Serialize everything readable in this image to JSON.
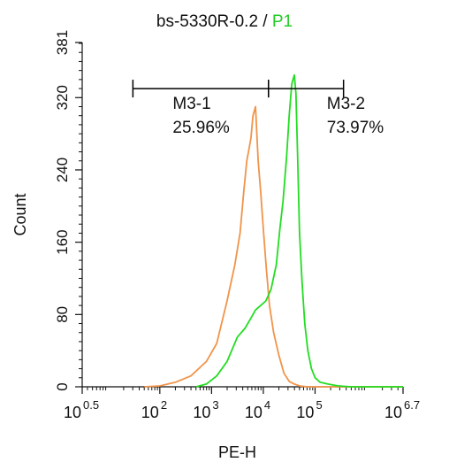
{
  "title": {
    "main": "bs-5330R-0.2",
    "separator": " / ",
    "accent": "P1"
  },
  "colors": {
    "background": "#ffffff",
    "axis": "#111111",
    "control_series": "#f0944a",
    "sample_series": "#22dd22",
    "accent_text": "#22cc22"
  },
  "chart_data": {
    "type": "line",
    "title": "bs-5330R-0.2 / P1",
    "xlabel": "PE-H",
    "ylabel": "Count",
    "x_scale": "log10",
    "xlim": [
      0.5,
      6.7
    ],
    "ylim": [
      0,
      381
    ],
    "grid": false,
    "x_ticks": [
      {
        "exp": 0.5,
        "label": "10",
        "sup": "0.5"
      },
      {
        "exp": 2,
        "label": "10",
        "sup": "2"
      },
      {
        "exp": 3,
        "label": "10",
        "sup": "3"
      },
      {
        "exp": 4,
        "label": "10",
        "sup": "4"
      },
      {
        "exp": 5,
        "label": "10",
        "sup": "5"
      },
      {
        "exp": 6.7,
        "label": "10",
        "sup": "6.7"
      }
    ],
    "y_ticks": [
      0,
      80,
      160,
      240,
      320,
      381
    ],
    "series": [
      {
        "key": "control",
        "x": [
          1.7,
          2.0,
          2.3,
          2.6,
          2.9,
          3.1,
          3.3,
          3.45,
          3.55,
          3.62,
          3.68,
          3.72,
          3.76,
          3.8,
          3.85,
          3.9,
          3.95,
          4.0,
          4.06,
          4.12,
          4.2,
          4.3,
          4.4,
          4.5,
          4.6,
          4.7,
          4.85,
          5.0,
          5.5,
          6.7
        ],
        "y": [
          0,
          1,
          5,
          12,
          28,
          48,
          95,
          135,
          170,
          215,
          250,
          262,
          275,
          300,
          310,
          250,
          215,
          175,
          130,
          90,
          60,
          35,
          15,
          6,
          3,
          1,
          0,
          0,
          0,
          0
        ]
      },
      {
        "key": "sample",
        "x": [
          2.7,
          2.9,
          3.1,
          3.3,
          3.5,
          3.65,
          3.75,
          3.85,
          3.95,
          4.05,
          4.15,
          4.25,
          4.32,
          4.38,
          4.45,
          4.5,
          4.55,
          4.6,
          4.63,
          4.66,
          4.7,
          4.75,
          4.8,
          4.86,
          4.93,
          5.0,
          5.1,
          5.25,
          5.45,
          5.7,
          6.7
        ],
        "y": [
          0,
          3,
          12,
          28,
          55,
          65,
          75,
          85,
          90,
          95,
          108,
          135,
          175,
          205,
          255,
          300,
          335,
          345,
          325,
          260,
          170,
          115,
          70,
          40,
          20,
          10,
          5,
          3,
          1,
          0,
          0
        ]
      }
    ],
    "markers": [
      {
        "label": "M3-1",
        "percent": "25.96%",
        "x_start": 1.48,
        "x_end": 4.1,
        "y": 330
      },
      {
        "label": "M3-2",
        "percent": "73.97%",
        "x_start": 4.1,
        "x_end": 5.55,
        "y": 330
      }
    ]
  }
}
